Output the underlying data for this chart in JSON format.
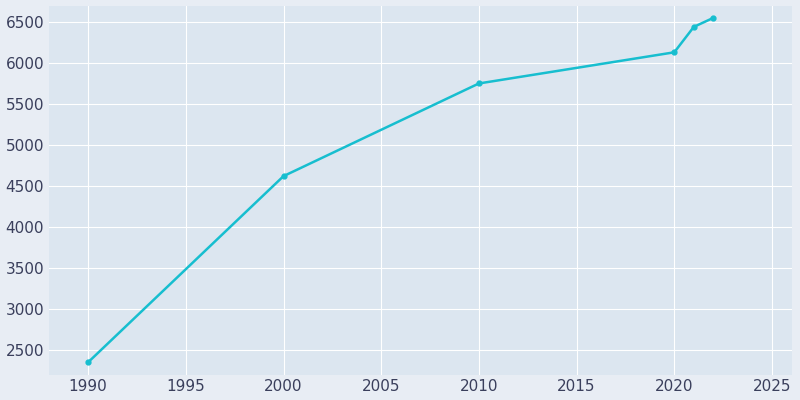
{
  "years": [
    1990,
    2000,
    2010,
    2020,
    2021,
    2022
  ],
  "population": [
    2350,
    4620,
    5750,
    6130,
    6440,
    6550
  ],
  "line_color": "#17becf",
  "bg_color": "#e8edf4",
  "axes_bg_color": "#dce6f0",
  "tick_label_color": "#3a3f5c",
  "grid_color": "#ffffff",
  "xlim": [
    1988,
    2026
  ],
  "ylim": [
    2200,
    6700
  ],
  "xticks": [
    1990,
    1995,
    2000,
    2005,
    2010,
    2015,
    2020,
    2025
  ],
  "yticks": [
    2500,
    3000,
    3500,
    4000,
    4500,
    5000,
    5500,
    6000,
    6500
  ],
  "linewidth": 1.8,
  "marker": "o",
  "markersize": 3.5,
  "tick_fontsize": 11
}
